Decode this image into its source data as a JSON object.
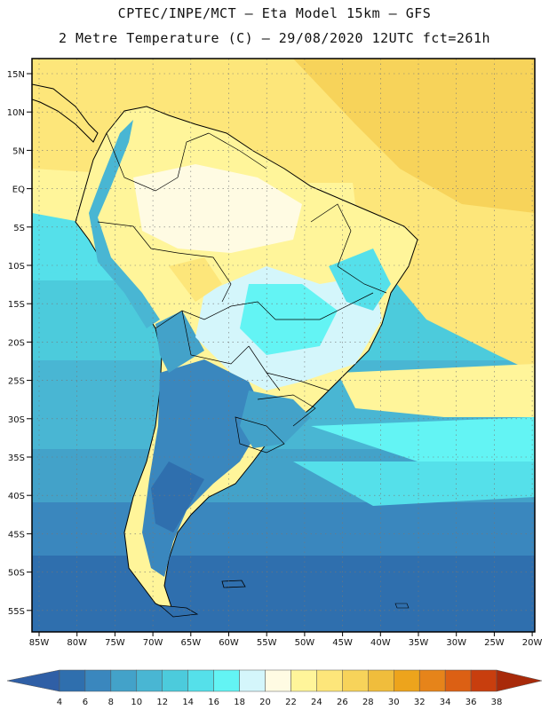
{
  "header": {
    "line1": "CPTEC/INPE/MCT –  Eta Model 15km – GFS",
    "line2": "2 Metre Temperature (C) – 29/08/2020 12UTC fct=261h"
  },
  "axes": {
    "lat_labels": [
      "15N",
      "10N",
      "5N",
      "EQ",
      "5S",
      "10S",
      "15S",
      "20S",
      "25S",
      "30S",
      "35S",
      "40S",
      "45S",
      "50S",
      "55S"
    ],
    "lon_labels": [
      "85W",
      "80W",
      "75W",
      "70W",
      "65W",
      "60W",
      "55W",
      "50W",
      "45W",
      "40W",
      "35W",
      "30W",
      "25W",
      "20W"
    ]
  },
  "legend": {
    "values": [
      "4",
      "6",
      "8",
      "10",
      "12",
      "14",
      "16",
      "18",
      "20",
      "22",
      "24",
      "26",
      "28",
      "30",
      "32",
      "34",
      "36",
      "38"
    ],
    "colors": [
      "#2f5fa6",
      "#2f6fae",
      "#3a87be",
      "#43a2c9",
      "#49b6d3",
      "#4ccbdc",
      "#55e0ea",
      "#63f4f4",
      "#d4f6fb",
      "#fffbe3",
      "#fff59a",
      "#fde67a",
      "#f7d35a",
      "#f0bd3c",
      "#eda41c",
      "#e6841a",
      "#dc6014",
      "#c83e0e",
      "#a82a0a"
    ]
  }
}
